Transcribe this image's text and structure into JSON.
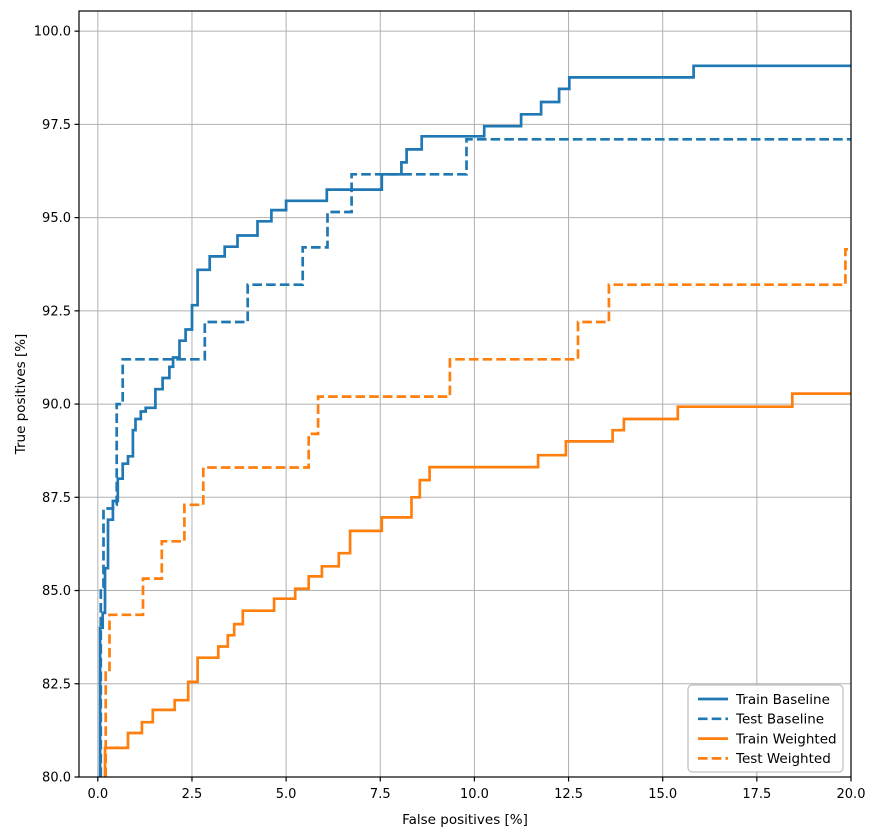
{
  "figure": {
    "background": "#ffffff"
  },
  "chart_data": {
    "type": "line",
    "step": true,
    "title": "",
    "xlabel": "False positives [%]",
    "ylabel": "True positives [%]",
    "xlim": [
      -0.5,
      20.0
    ],
    "ylim": [
      80.0,
      100.54
    ],
    "x_ticks": [
      0.0,
      2.5,
      5.0,
      7.5,
      10.0,
      12.5,
      15.0,
      17.5,
      20.0
    ],
    "y_ticks": [
      80.0,
      82.5,
      85.0,
      87.5,
      90.0,
      92.5,
      95.0,
      97.5,
      100.0
    ],
    "grid": true,
    "grid_color": "#b0b0b0",
    "spine_color": "#000000",
    "legend_position": "lower right",
    "legend_labels": [
      "Train Baseline",
      "Test Baseline",
      "Train Weighted",
      "Test Weighted"
    ],
    "colors": {
      "baseline": "#1f77b4",
      "weighted": "#ff7f0e"
    },
    "series": [
      {
        "name": "Train Baseline",
        "color": "#1f77b4",
        "dash": "solid",
        "points": [
          [
            0.06,
            80
          ],
          [
            0.06,
            84.0
          ],
          [
            0.13,
            84.0
          ],
          [
            0.13,
            84.4
          ],
          [
            0.19,
            84.4
          ],
          [
            0.19,
            85.6
          ],
          [
            0.27,
            85.6
          ],
          [
            0.27,
            86.9
          ],
          [
            0.4,
            86.9
          ],
          [
            0.4,
            87.4
          ],
          [
            0.53,
            87.4
          ],
          [
            0.53,
            88.0
          ],
          [
            0.66,
            88.0
          ],
          [
            0.66,
            88.4
          ],
          [
            0.8,
            88.4
          ],
          [
            0.8,
            88.6
          ],
          [
            0.93,
            88.6
          ],
          [
            0.93,
            89.3
          ],
          [
            1.0,
            89.3
          ],
          [
            1.0,
            89.6
          ],
          [
            1.14,
            89.6
          ],
          [
            1.14,
            89.8
          ],
          [
            1.27,
            89.8
          ],
          [
            1.27,
            89.9
          ],
          [
            1.53,
            89.9
          ],
          [
            1.53,
            90.4
          ],
          [
            1.72,
            90.4
          ],
          [
            1.72,
            90.7
          ],
          [
            1.9,
            90.7
          ],
          [
            1.9,
            91.0
          ],
          [
            2.0,
            91.0
          ],
          [
            2.0,
            91.25
          ],
          [
            2.17,
            91.25
          ],
          [
            2.17,
            91.7
          ],
          [
            2.33,
            91.7
          ],
          [
            2.33,
            92.0
          ],
          [
            2.5,
            92.0
          ],
          [
            2.5,
            92.65
          ],
          [
            2.65,
            92.65
          ],
          [
            2.65,
            93.6
          ],
          [
            2.97,
            93.6
          ],
          [
            2.97,
            93.96
          ],
          [
            3.37,
            93.96
          ],
          [
            3.37,
            94.22
          ],
          [
            3.71,
            94.22
          ],
          [
            3.71,
            94.52
          ],
          [
            4.24,
            94.52
          ],
          [
            4.24,
            94.9
          ],
          [
            4.61,
            94.9
          ],
          [
            4.61,
            95.2
          ],
          [
            5.0,
            95.2
          ],
          [
            5.0,
            95.45
          ],
          [
            6.08,
            95.45
          ],
          [
            6.08,
            95.75
          ],
          [
            7.54,
            95.75
          ],
          [
            7.54,
            96.16
          ],
          [
            8.06,
            96.16
          ],
          [
            8.06,
            96.48
          ],
          [
            8.2,
            96.48
          ],
          [
            8.2,
            96.83
          ],
          [
            8.6,
            96.83
          ],
          [
            8.6,
            97.18
          ],
          [
            10.26,
            97.18
          ],
          [
            10.26,
            97.45
          ],
          [
            11.24,
            97.45
          ],
          [
            11.24,
            97.77
          ],
          [
            11.77,
            97.77
          ],
          [
            11.77,
            98.1
          ],
          [
            12.25,
            98.1
          ],
          [
            12.25,
            98.45
          ],
          [
            12.52,
            98.45
          ],
          [
            12.52,
            98.76
          ],
          [
            15.82,
            98.76
          ],
          [
            15.82,
            99.07
          ],
          [
            20,
            99.07
          ]
        ]
      },
      {
        "name": "Test Baseline",
        "color": "#1f77b4",
        "dash": "dashed",
        "points": [
          [
            0.08,
            80
          ],
          [
            0.08,
            85.1
          ],
          [
            0.15,
            85.1
          ],
          [
            0.15,
            87.2
          ],
          [
            0.4,
            87.2
          ],
          [
            0.4,
            87.3
          ],
          [
            0.5,
            87.3
          ],
          [
            0.5,
            90.0
          ],
          [
            0.66,
            90.0
          ],
          [
            0.66,
            91.2
          ],
          [
            2.84,
            91.2
          ],
          [
            2.84,
            92.2
          ],
          [
            3.98,
            92.2
          ],
          [
            3.98,
            93.2
          ],
          [
            5.44,
            93.2
          ],
          [
            5.44,
            94.2
          ],
          [
            6.1,
            94.2
          ],
          [
            6.1,
            95.15
          ],
          [
            6.74,
            95.15
          ],
          [
            6.74,
            96.16
          ],
          [
            9.79,
            96.16
          ],
          [
            9.79,
            97.1
          ],
          [
            20,
            97.1
          ]
        ]
      },
      {
        "name": "Train Weighted",
        "color": "#ff7f0e",
        "dash": "solid",
        "points": [
          [
            0.19,
            80
          ],
          [
            0.19,
            80.78
          ],
          [
            0.8,
            80.78
          ],
          [
            0.8,
            81.18
          ],
          [
            1.17,
            81.18
          ],
          [
            1.17,
            81.47
          ],
          [
            1.46,
            81.47
          ],
          [
            1.46,
            81.8
          ],
          [
            2.04,
            81.8
          ],
          [
            2.04,
            82.06
          ],
          [
            2.4,
            82.06
          ],
          [
            2.4,
            82.55
          ],
          [
            2.65,
            82.55
          ],
          [
            2.65,
            83.2
          ],
          [
            3.2,
            83.2
          ],
          [
            3.2,
            83.5
          ],
          [
            3.45,
            83.5
          ],
          [
            3.45,
            83.8
          ],
          [
            3.62,
            83.8
          ],
          [
            3.62,
            84.1
          ],
          [
            3.85,
            84.1
          ],
          [
            3.85,
            84.46
          ],
          [
            4.68,
            84.46
          ],
          [
            4.68,
            84.78
          ],
          [
            5.24,
            84.78
          ],
          [
            5.24,
            85.05
          ],
          [
            5.6,
            85.05
          ],
          [
            5.6,
            85.38
          ],
          [
            5.95,
            85.38
          ],
          [
            5.95,
            85.65
          ],
          [
            6.4,
            85.65
          ],
          [
            6.4,
            86.0
          ],
          [
            6.7,
            86.0
          ],
          [
            6.7,
            86.6
          ],
          [
            7.54,
            86.6
          ],
          [
            7.54,
            86.96
          ],
          [
            8.33,
            86.96
          ],
          [
            8.33,
            87.5
          ],
          [
            8.55,
            87.5
          ],
          [
            8.55,
            87.96
          ],
          [
            8.81,
            87.96
          ],
          [
            8.81,
            88.31
          ],
          [
            11.69,
            88.31
          ],
          [
            11.69,
            88.63
          ],
          [
            12.43,
            88.63
          ],
          [
            12.43,
            89.0
          ],
          [
            13.67,
            89.0
          ],
          [
            13.67,
            89.3
          ],
          [
            13.97,
            89.3
          ],
          [
            13.97,
            89.6
          ],
          [
            15.4,
            89.6
          ],
          [
            15.4,
            89.93
          ],
          [
            18.44,
            89.93
          ],
          [
            18.44,
            90.28
          ],
          [
            20,
            90.28
          ]
        ]
      },
      {
        "name": "Test Weighted",
        "color": "#ff7f0e",
        "dash": "dashed",
        "points": [
          [
            0.21,
            80
          ],
          [
            0.21,
            82.8
          ],
          [
            0.31,
            82.8
          ],
          [
            0.31,
            84.35
          ],
          [
            1.2,
            84.35
          ],
          [
            1.2,
            85.32
          ],
          [
            1.7,
            85.32
          ],
          [
            1.7,
            86.32
          ],
          [
            2.3,
            86.32
          ],
          [
            2.3,
            87.3
          ],
          [
            2.8,
            87.3
          ],
          [
            2.8,
            88.3
          ],
          [
            5.6,
            88.3
          ],
          [
            5.6,
            89.2
          ],
          [
            5.85,
            89.2
          ],
          [
            5.85,
            90.2
          ],
          [
            9.35,
            90.2
          ],
          [
            9.35,
            91.2
          ],
          [
            12.75,
            91.2
          ],
          [
            12.75,
            92.2
          ],
          [
            13.57,
            92.2
          ],
          [
            13.57,
            93.2
          ],
          [
            19.85,
            93.2
          ],
          [
            19.85,
            94.15
          ],
          [
            20,
            94.15
          ]
        ]
      }
    ]
  }
}
